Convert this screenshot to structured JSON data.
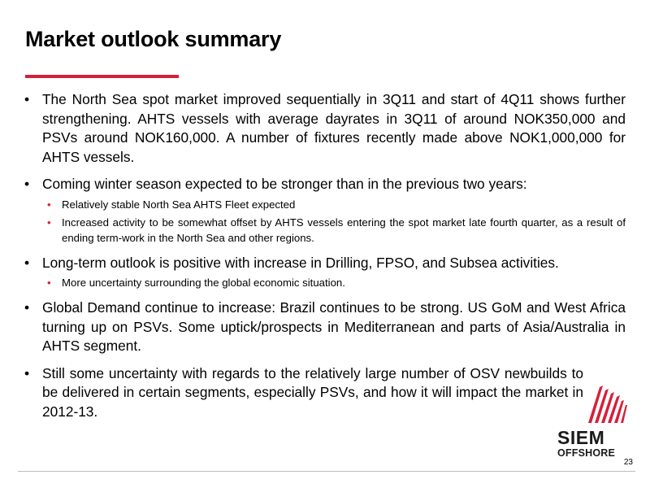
{
  "slide": {
    "title": "Market outlook summary",
    "accent_color": "#d5203a",
    "bullet_symbol": "•",
    "bullets": [
      {
        "text": "The North Sea spot market improved sequentially in 3Q11 and start of 4Q11 shows further strengthening. AHTS vessels with average dayrates in 3Q11 of around NOK350,000 and PSVs around NOK160,000. A number of fixtures recently made above NOK1,000,000 for AHTS vessels.",
        "sub": []
      },
      {
        "text": "Coming winter season expected to be stronger than in the previous two years:",
        "sub": [
          "Relatively stable North Sea AHTS Fleet expected",
          "Increased activity to be somewhat offset by AHTS vessels entering the spot market late fourth quarter, as a result of ending term-work in the North Sea and other regions."
        ]
      },
      {
        "text": "Long-term outlook is positive with increase in Drilling, FPSO, and Subsea activities.",
        "sub": [
          "More uncertainty surrounding the global economic situation."
        ]
      },
      {
        "text": "Global Demand continue to increase: Brazil continues to be strong. US GoM and West Africa turning up on PSVs. Some uptick/prospects in Mediterranean and parts of Asia/Australia in AHTS segment.",
        "sub": []
      },
      {
        "text": "Still some uncertainty with regards to the relatively large number of OSV newbuilds to be delivered in certain segments, especially PSVs, and how it will impact the market in 2012-13.",
        "sub": []
      }
    ],
    "page_number": "23"
  },
  "logo": {
    "name": "SIEM",
    "tagline": "OFFSHORE",
    "icon": "sail-stripes-icon",
    "color": "#d5203a"
  }
}
